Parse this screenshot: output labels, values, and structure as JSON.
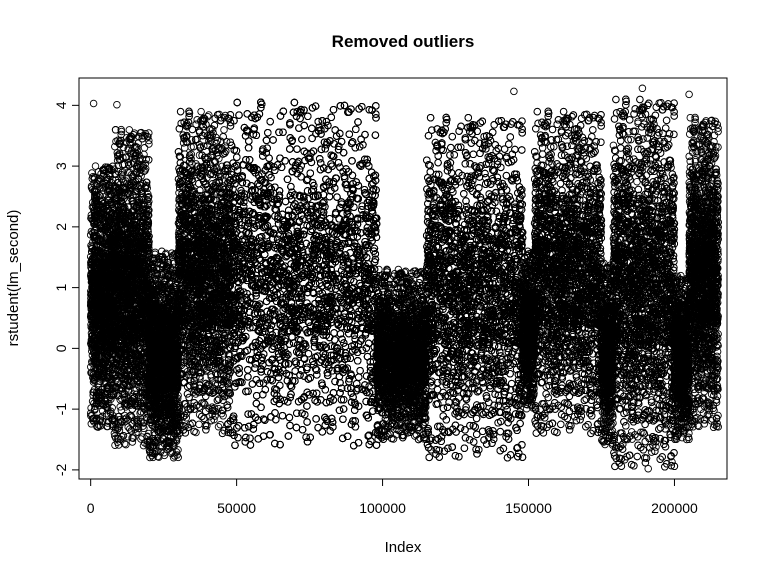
{
  "chart_data": {
    "type": "scatter",
    "title": "Removed outliers",
    "xlabel": "Index",
    "ylabel": "rstudent(lm_second)",
    "xlim": [
      -4000,
      218000
    ],
    "ylim": [
      -2.15,
      4.45
    ],
    "x_ticks": [
      0,
      50000,
      100000,
      150000,
      200000
    ],
    "x_tick_labels": [
      "0",
      "50000",
      "100000",
      "150000",
      "200000"
    ],
    "y_ticks": [
      -2,
      -1,
      0,
      1,
      2,
      3,
      4
    ],
    "y_tick_labels": [
      "-2",
      "-1",
      "0",
      "1",
      "2",
      "3",
      "4"
    ],
    "grid": false,
    "legend": "none",
    "marker": "open-circle",
    "marker_color": "#000000",
    "n_points": 215000,
    "series": [
      {
        "segments": [
          {
            "x_range": [
              0,
              8000
            ],
            "y_range": [
              -1.3,
              3.0
            ]
          },
          {
            "x_range": [
              8000,
              20000
            ],
            "y_range": [
              -1.6,
              3.6
            ]
          },
          {
            "x_range": [
              20000,
              30000
            ],
            "y_range": [
              -1.8,
              1.6
            ]
          },
          {
            "x_range": [
              30000,
              48000
            ],
            "y_range": [
              -1.4,
              3.9
            ]
          },
          {
            "x_range": [
              48000,
              98000
            ],
            "y_range": [
              -1.6,
              4.05
            ]
          },
          {
            "x_range": [
              98000,
              115000
            ],
            "y_range": [
              -1.5,
              1.3
            ]
          },
          {
            "x_range": [
              115000,
              148000
            ],
            "y_range": [
              -1.8,
              3.8
            ]
          },
          {
            "x_range": [
              148000,
              152000
            ],
            "y_range": [
              -1.0,
              1.6
            ]
          },
          {
            "x_range": [
              152000,
              175000
            ],
            "y_range": [
              -1.4,
              3.9
            ]
          },
          {
            "x_range": [
              175000,
              179000
            ],
            "y_range": [
              -1.6,
              1.4
            ]
          },
          {
            "x_range": [
              179000,
              200000
            ],
            "y_range": [
              -1.95,
              4.1
            ]
          },
          {
            "x_range": [
              200000,
              205000
            ],
            "y_range": [
              -1.5,
              1.2
            ]
          },
          {
            "x_range": [
              205000,
              215000
            ],
            "y_range": [
              -1.3,
              3.8
            ]
          }
        ],
        "notable_points": [
          {
            "x": 1000,
            "y": 4.03
          },
          {
            "x": 9000,
            "y": 4.01
          },
          {
            "x": 145000,
            "y": 4.23
          },
          {
            "x": 189000,
            "y": 4.28
          },
          {
            "x": 205000,
            "y": 4.18
          },
          {
            "x": 191000,
            "y": -1.98
          }
        ]
      }
    ]
  }
}
